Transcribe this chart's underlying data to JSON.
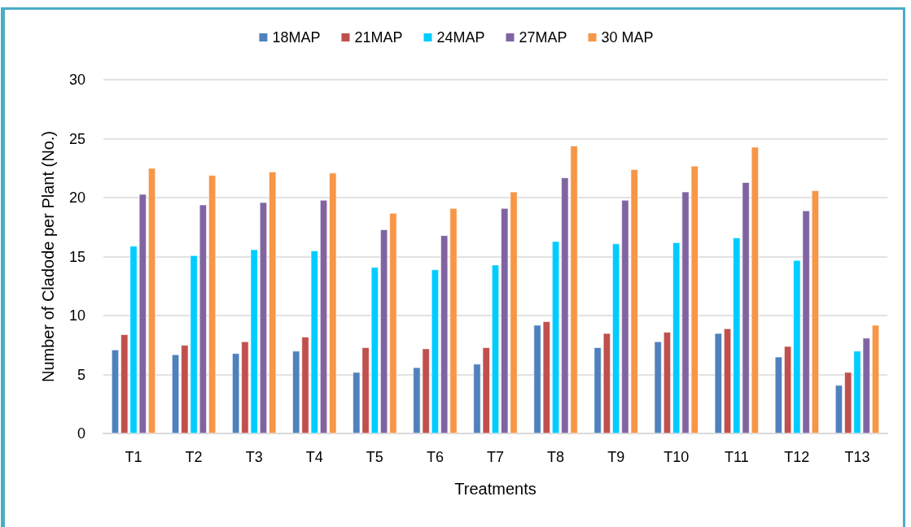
{
  "chart_data": {
    "type": "bar",
    "xlabel": "Treatments",
    "ylabel": "Number of Cladode per Plant (No.)",
    "categories": [
      "T1",
      "T2",
      "T3",
      "T4",
      "T5",
      "T6",
      "T7",
      "T8",
      "T9",
      "T10",
      "T11",
      "T12",
      "T13"
    ],
    "series": [
      {
        "name": "18MAP",
        "color": "#4f81bd",
        "values": [
          7.1,
          6.7,
          6.8,
          7.0,
          5.2,
          5.6,
          5.9,
          9.2,
          7.3,
          7.8,
          8.5,
          6.5,
          4.1
        ]
      },
      {
        "name": "21MAP",
        "color": "#c0504d",
        "values": [
          8.4,
          7.5,
          7.8,
          8.2,
          7.3,
          7.2,
          7.3,
          9.5,
          8.5,
          8.6,
          8.9,
          7.4,
          5.2
        ]
      },
      {
        "name": "24MAP",
        "color": "#00ccff",
        "values": [
          15.9,
          15.1,
          15.6,
          15.5,
          14.1,
          13.9,
          14.3,
          16.3,
          16.1,
          16.2,
          16.6,
          14.7,
          7.0
        ]
      },
      {
        "name": "27MAP",
        "color": "#8064a2",
        "values": [
          20.3,
          19.4,
          19.6,
          19.8,
          17.3,
          16.8,
          19.1,
          21.7,
          19.8,
          20.5,
          21.3,
          18.9,
          8.1
        ]
      },
      {
        "name": "30 MAP",
        "color": "#f79646",
        "values": [
          22.5,
          21.9,
          22.2,
          22.1,
          18.7,
          19.1,
          20.5,
          24.4,
          22.4,
          22.7,
          24.3,
          20.6,
          9.2
        ]
      }
    ],
    "ylim": [
      0,
      30
    ],
    "yticks": [
      0,
      5,
      10,
      15,
      20,
      25,
      30
    ],
    "grid": "y",
    "legend": "top"
  }
}
